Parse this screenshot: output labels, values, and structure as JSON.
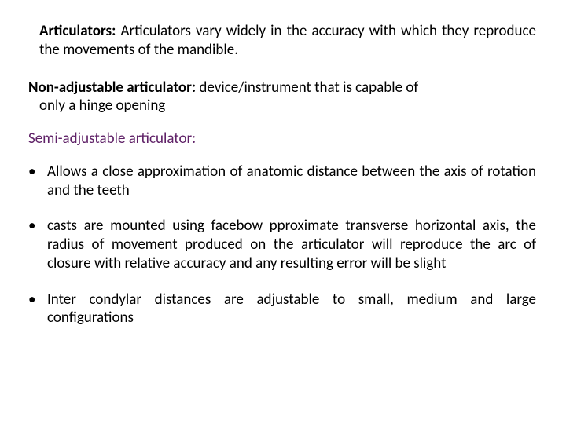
{
  "colors": {
    "text": "#000000",
    "semi_heading": "#5f2167",
    "background": "#ffffff"
  },
  "typography": {
    "body_fontsize_pt": 14,
    "bold_weight": 700,
    "font_family": "Calibri"
  },
  "intro": {
    "heading": "Articulators:",
    "body": "Articulators vary widely in the accuracy with which they reproduce the movements of the mandible."
  },
  "non_adjustable": {
    "heading": "Non-adjustable articulator:",
    "body_line1": "device/instrument that is capable of",
    "body_line2": "only a hinge opening"
  },
  "semi_adjustable": {
    "heading": "Semi-adjustable articulator:"
  },
  "bullets": [
    "Allows a close approximation of anatomic distance between the axis of rotation and the teeth",
    "casts are mounted using facebow  pproximate transverse horizontal axis, the radius of movement produced on the articulator will reproduce the arc of closure with relative accuracy and any resulting error will be slight",
    "Inter condylar distances are adjustable to small, medium and large configurations"
  ],
  "bullet_marker": "•"
}
